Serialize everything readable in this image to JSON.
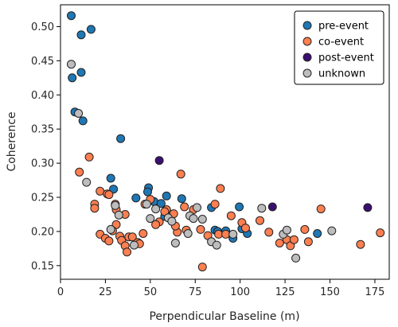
{
  "chart_data": {
    "type": "scatter",
    "xlabel": "Perpendicular Baseline (m)",
    "ylabel": "Coherence",
    "xlim": [
      0,
      183
    ],
    "ylim": [
      0.13,
      0.532
    ],
    "xticks": [
      0,
      25,
      50,
      75,
      100,
      125,
      150,
      175
    ],
    "yticks": [
      0.15,
      0.2,
      0.25,
      0.3,
      0.35,
      0.4,
      0.45,
      0.5
    ],
    "legend_position": "top-right",
    "grid": false,
    "series": [
      {
        "name": "pre-event",
        "color": "#1f77b4",
        "points": [
          [
            6,
            0.516
          ],
          [
            17,
            0.496
          ],
          [
            11.5,
            0.488
          ],
          [
            11.5,
            0.433
          ],
          [
            6.5,
            0.425
          ],
          [
            8,
            0.375
          ],
          [
            12.5,
            0.362
          ],
          [
            33.5,
            0.336
          ],
          [
            28,
            0.278
          ],
          [
            29.5,
            0.262
          ],
          [
            42,
            0.249
          ],
          [
            49,
            0.264
          ],
          [
            48.5,
            0.258
          ],
          [
            52,
            0.244
          ],
          [
            56,
            0.241
          ],
          [
            59,
            0.252
          ],
          [
            67.5,
            0.248
          ],
          [
            60,
            0.226
          ],
          [
            58,
            0.222
          ],
          [
            84,
            0.235
          ],
          [
            99.5,
            0.236
          ],
          [
            86,
            0.202
          ],
          [
            87.5,
            0.2
          ],
          [
            92,
            0.201
          ],
          [
            96,
            0.19
          ],
          [
            101,
            0.204
          ],
          [
            104,
            0.197
          ],
          [
            143,
            0.197
          ]
        ]
      },
      {
        "name": "co-event",
        "color": "#ff7f50",
        "points": [
          [
            16,
            0.309
          ],
          [
            10.5,
            0.287
          ],
          [
            19,
            0.24
          ],
          [
            19,
            0.234
          ],
          [
            22,
            0.259
          ],
          [
            26,
            0.255
          ],
          [
            27,
            0.254
          ],
          [
            30.5,
            0.24
          ],
          [
            31,
            0.232
          ],
          [
            36,
            0.225
          ],
          [
            31,
            0.21
          ],
          [
            29,
            0.201
          ],
          [
            22,
            0.196
          ],
          [
            25,
            0.19
          ],
          [
            27,
            0.186
          ],
          [
            33,
            0.193
          ],
          [
            34,
            0.187
          ],
          [
            36,
            0.179
          ],
          [
            37,
            0.17
          ],
          [
            38,
            0.192
          ],
          [
            40,
            0.192
          ],
          [
            43,
            0.184
          ],
          [
            44,
            0.182
          ],
          [
            46,
            0.197
          ],
          [
            47,
            0.24
          ],
          [
            50,
            0.247
          ],
          [
            55,
            0.214
          ],
          [
            59,
            0.232
          ],
          [
            58,
            0.229
          ],
          [
            63,
            0.226
          ],
          [
            67,
            0.284
          ],
          [
            69,
            0.236
          ],
          [
            70,
            0.202
          ],
          [
            65,
            0.199
          ],
          [
            64,
            0.208
          ],
          [
            74,
            0.232
          ],
          [
            78,
            0.203
          ],
          [
            79,
            0.148
          ],
          [
            86,
            0.24
          ],
          [
            89,
            0.263
          ],
          [
            88,
            0.196
          ],
          [
            92,
            0.196
          ],
          [
            95,
            0.223
          ],
          [
            101,
            0.213
          ],
          [
            103,
            0.205
          ],
          [
            111,
            0.216
          ],
          [
            116,
            0.199
          ],
          [
            122,
            0.183
          ],
          [
            126,
            0.188
          ],
          [
            128,
            0.179
          ],
          [
            130,
            0.188
          ],
          [
            136,
            0.203
          ],
          [
            138,
            0.185
          ],
          [
            145,
            0.233
          ],
          [
            167,
            0.181
          ],
          [
            178,
            0.198
          ],
          [
            82,
            0.194
          ],
          [
            53,
            0.21
          ]
        ]
      },
      {
        "name": "post-event",
        "color": "#3b0f70",
        "points": [
          [
            55,
            0.304
          ],
          [
            118,
            0.236
          ],
          [
            171,
            0.235
          ]
        ]
      },
      {
        "name": "unknown",
        "color": "#bdbdbd",
        "points": [
          [
            6,
            0.445
          ],
          [
            10,
            0.373
          ],
          [
            14.5,
            0.272
          ],
          [
            30.5,
            0.238
          ],
          [
            32.5,
            0.224
          ],
          [
            48,
            0.24
          ],
          [
            50,
            0.219
          ],
          [
            53,
            0.233
          ],
          [
            60,
            0.22
          ],
          [
            62,
            0.215
          ],
          [
            64,
            0.183
          ],
          [
            71,
            0.197
          ],
          [
            72,
            0.223
          ],
          [
            74,
            0.219
          ],
          [
            76,
            0.235
          ],
          [
            79,
            0.218
          ],
          [
            84,
            0.185
          ],
          [
            87,
            0.18
          ],
          [
            96,
            0.196
          ],
          [
            112,
            0.234
          ],
          [
            124,
            0.196
          ],
          [
            126,
            0.202
          ],
          [
            131,
            0.161
          ],
          [
            151,
            0.201
          ],
          [
            28,
            0.203
          ],
          [
            41,
            0.18
          ]
        ]
      }
    ]
  }
}
